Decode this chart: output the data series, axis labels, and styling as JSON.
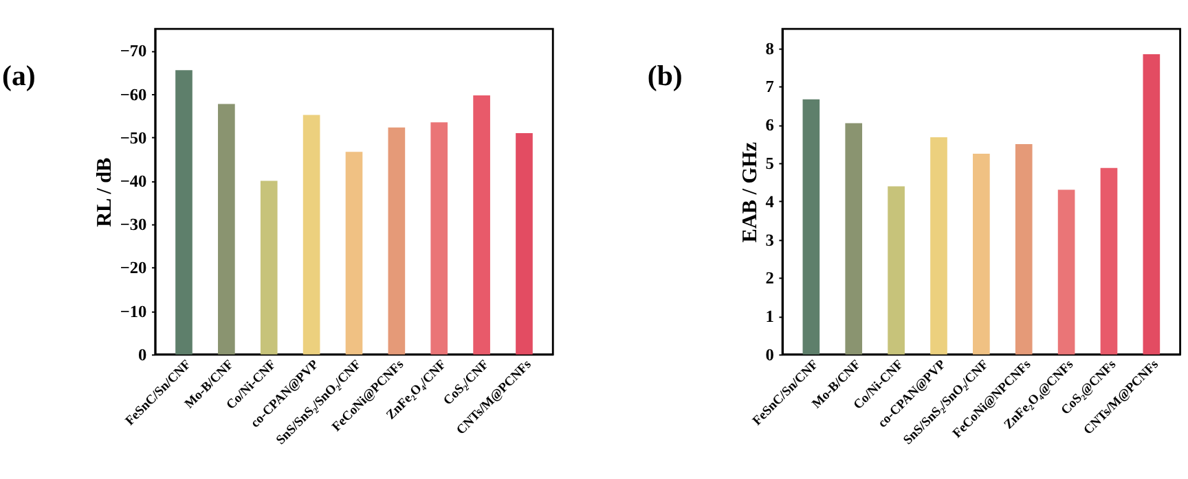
{
  "chart_data": [
    {
      "type": "bar",
      "title": "(a)",
      "ylabel": "RL / dB",
      "categories": [
        "FeSnC/Sn/CNF",
        "Mo-B/CNF",
        "Co/Ni-CNF",
        "co-CPAN@PVP",
        "SnS/SnS₂/SnO₂/CNF",
        "FeCoNi@PCNFs",
        "ZnFe₂O₄/CNF",
        "CoS₂/CNF",
        "CNTs/M@PCNFs"
      ],
      "values": [
        -65.5,
        -57.7,
        -40,
        -55.2,
        -46.7,
        -52.3,
        -53.5,
        -59.7,
        -51
      ],
      "colors": [
        "#5e7f6b",
        "#8a9470",
        "#c7c37a",
        "#ecd07e",
        "#f0c183",
        "#e59a78",
        "#ea7577",
        "#e85a6a",
        "#e34c62"
      ],
      "ylim": [
        0,
        -75
      ],
      "yticks": [
        0,
        -10,
        -20,
        -30,
        -40,
        -50,
        -60,
        -70
      ],
      "grid": false
    },
    {
      "type": "bar",
      "title": "(b)",
      "ylabel": "EAB / GHz",
      "categories": [
        "FeSnC/Sn/CNF",
        "Mo-B/CNF",
        "Co/Ni-CNF",
        "co-CPAN@PVP",
        "SnS/SnS₂/SnO₂/CNF",
        "FeCoNi@NPCNFs",
        "ZnFe₂O₄@CNFs",
        "CoS₂@CNFs",
        "CNTs/M@PCNFs"
      ],
      "values": [
        6.66,
        6.04,
        4.39,
        5.67,
        5.24,
        5.49,
        4.3,
        4.87,
        7.84
      ],
      "colors": [
        "#5e7f6b",
        "#8a9470",
        "#c7c37a",
        "#ecd07e",
        "#f0c183",
        "#e59a78",
        "#ea7577",
        "#e85a6a",
        "#e34c62"
      ],
      "ylim": [
        0,
        8.5
      ],
      "yticks": [
        0,
        1,
        2,
        3,
        4,
        5,
        6,
        7,
        8
      ],
      "grid": false
    }
  ]
}
